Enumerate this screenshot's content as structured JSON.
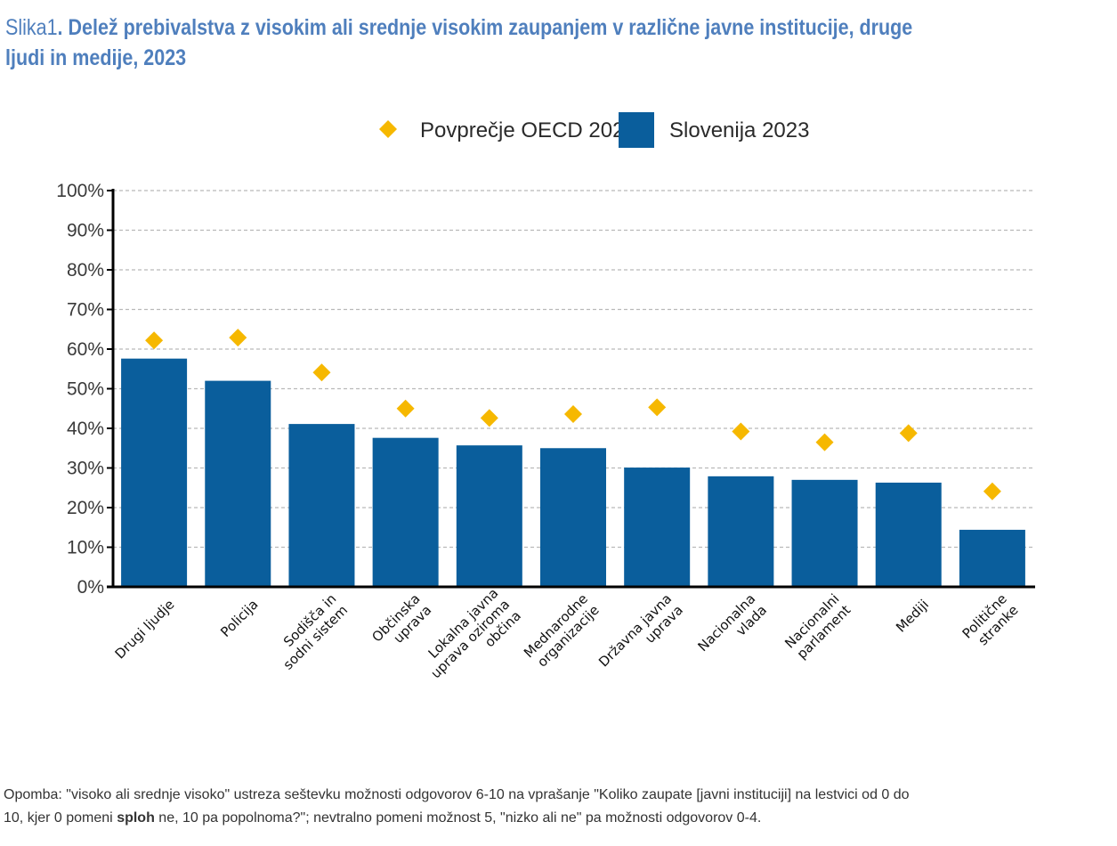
{
  "header": {
    "prefix": "Slika",
    "number": "1",
    "title_text": ". Delež prebivalstva z visokim ali srednje visokim zaupanjem v različne javne institucije, druge ljudi in medije, 2023"
  },
  "chart_data": {
    "type": "bar",
    "categories": [
      [
        "Drugi ljudje"
      ],
      [
        "Policija"
      ],
      [
        "Sodišča in",
        "sodni sistem"
      ],
      [
        "Občinska",
        "uprava"
      ],
      [
        "Lokalna javna",
        "uprava oziroma",
        "občina"
      ],
      [
        "Mednarodne",
        "organizacije"
      ],
      [
        "Državna javna",
        "uprava"
      ],
      [
        "Nacionalna",
        "vlada"
      ],
      [
        "Nacionalni",
        "parlament"
      ],
      [
        "Mediji"
      ],
      [
        "Politične",
        "stranke"
      ]
    ],
    "series": [
      {
        "name": "Povprečje OECD 2023",
        "marker": "diamond",
        "color": "#f6b800",
        "values": [
          62.2,
          62.9,
          54.1,
          45.0,
          42.6,
          43.6,
          45.3,
          39.2,
          36.5,
          38.8,
          24.1
        ]
      },
      {
        "name": "Slovenija 2023",
        "marker": "bar",
        "color": "#0a5e9c",
        "values": [
          57.6,
          52.0,
          41.1,
          37.6,
          35.7,
          35.0,
          30.1,
          27.9,
          27.0,
          26.3,
          14.4
        ]
      }
    ],
    "y_ticks": [
      "0%",
      "10%",
      "20%",
      "30%",
      "40%",
      "50%",
      "60%",
      "70%",
      "80%",
      "90%",
      "100%"
    ],
    "ylim": [
      0,
      100
    ],
    "grid": "horizontal dashed",
    "legend": "top-center",
    "xlabel": "",
    "ylabel": ""
  },
  "note": {
    "line1_part1": "Opomba: \"visoko ali srednje visoko\" ustreza seštevku možnosti odgovorov 6-10 na vprašanje \"Koliko zaupate [javni instituciji] na lestvici od 0 do",
    "line2_part1": "10, kjer 0 pomeni ",
    "line2_bold": "sploh",
    "line2_part2": " ne, 10 pa popolnoma?\"; nevtralno pomeni možnost 5, \"nizko ali ne\" pa možnosti odgovorov 0-4."
  }
}
